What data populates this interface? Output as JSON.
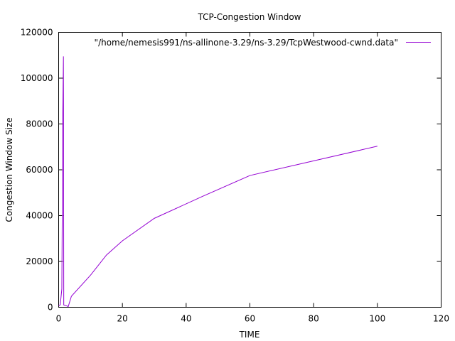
{
  "chart_data": {
    "type": "line",
    "title": "TCP-Congestion Window",
    "xlabel": "TIME",
    "ylabel": "Congestion Window Size",
    "xlim": [
      0,
      120
    ],
    "ylim": [
      0,
      120000
    ],
    "xticks": [
      0,
      20,
      40,
      60,
      80,
      100,
      120
    ],
    "yticks": [
      0,
      20000,
      40000,
      60000,
      80000,
      100000,
      120000
    ],
    "grid": false,
    "legend_position": "top-right",
    "series": [
      {
        "name": "\"/home/nemesis991/ns-allinone-3.29/ns-3.29/TcpWestwood-cwnd.data\"",
        "color": "#9400d3",
        "points": [
          [
            0,
            536
          ],
          [
            0.5,
            1072
          ],
          [
            1.0,
            8000
          ],
          [
            1.3,
            85000
          ],
          [
            1.5,
            109500
          ],
          [
            1.6,
            1000
          ],
          [
            2.5,
            600
          ],
          [
            3.0,
            300
          ],
          [
            4.0,
            4800
          ],
          [
            10.0,
            14000
          ],
          [
            15.0,
            22800
          ],
          [
            20.0,
            29000
          ],
          [
            30.0,
            38800
          ],
          [
            45.0,
            48300
          ],
          [
            60.0,
            57500
          ],
          [
            100.0,
            70300
          ]
        ]
      }
    ]
  }
}
